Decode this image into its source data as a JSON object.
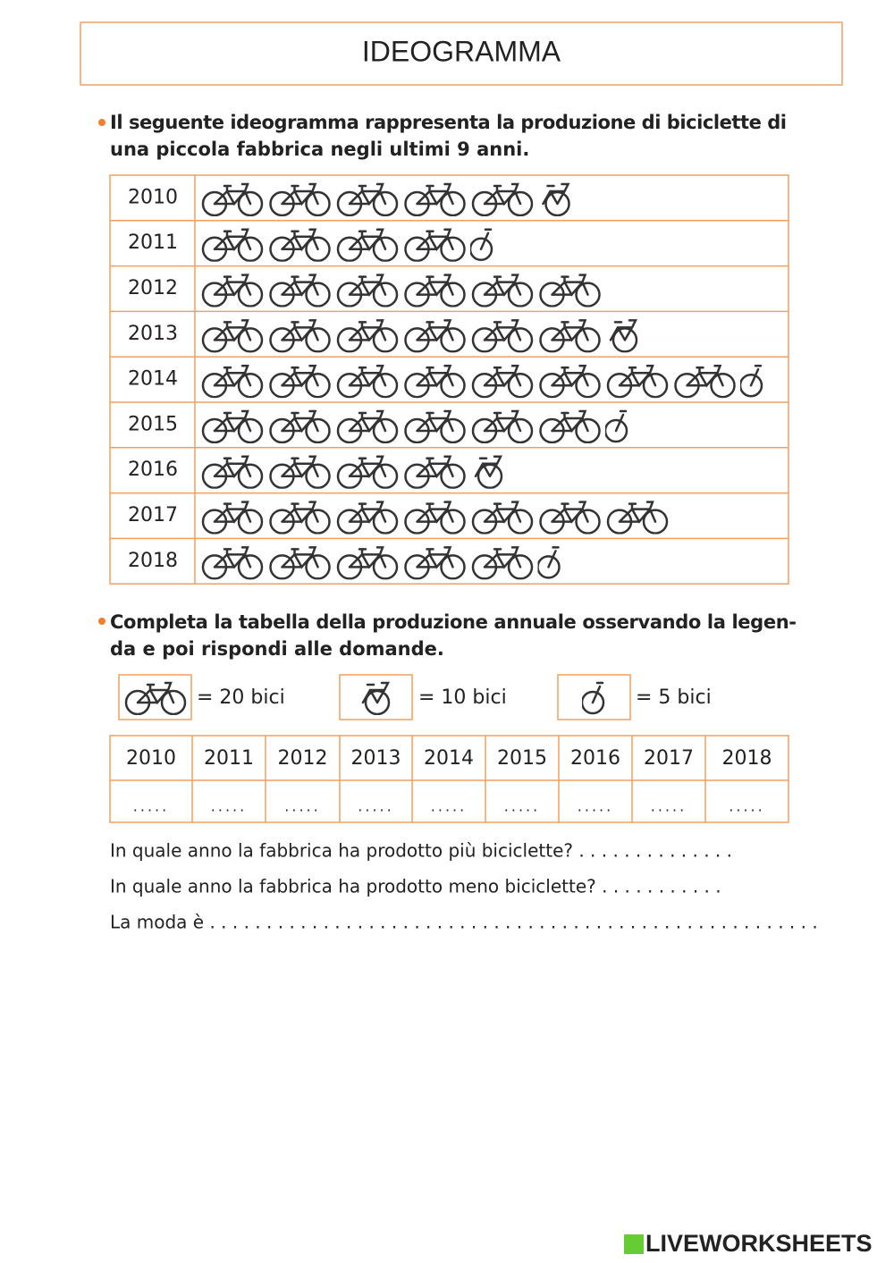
{
  "title": "IDEOGRAMMA",
  "intro": [
    "Il seguente ideogramma rappresenta la produzione di biciclette di",
    "una piccola fabbrica negli ultimi 9 anni."
  ],
  "pictogram": {
    "rows": [
      {
        "year": "2010",
        "full": 5,
        "half": 1,
        "quarter": 0
      },
      {
        "year": "2011",
        "full": 4,
        "half": 0,
        "quarter": 1
      },
      {
        "year": "2012",
        "full": 6,
        "half": 0,
        "quarter": 0
      },
      {
        "year": "2013",
        "full": 6,
        "half": 1,
        "quarter": 0
      },
      {
        "year": "2014",
        "full": 8,
        "half": 0,
        "quarter": 1
      },
      {
        "year": "2015",
        "full": 6,
        "half": 0,
        "quarter": 1
      },
      {
        "year": "2016",
        "full": 4,
        "half": 1,
        "quarter": 0
      },
      {
        "year": "2017",
        "full": 7,
        "half": 0,
        "quarter": 0
      },
      {
        "year": "2018",
        "full": 5,
        "half": 0,
        "quarter": 1
      }
    ]
  },
  "instruction": [
    "Completa la tabella della produzione annuale osservando la legen-",
    "da e poi rispondi alle domande."
  ],
  "legend": {
    "full": "= 20 bici",
    "half": "= 10 bici",
    "quarter": "= 5 bici"
  },
  "answer_table": {
    "header": [
      "2010",
      "2011",
      "2012",
      "2013",
      "2014",
      "2015",
      "2016",
      "2017",
      "2018"
    ],
    "cells": [
      ".....",
      ".....",
      ".....",
      ".....",
      ".....",
      ".....",
      ".....",
      ".....",
      "....."
    ]
  },
  "questions": [
    "In quale anno la fabbrica ha prodotto più biciclette? . . . . . . . . . . . . . .",
    "In quale anno la fabbrica ha prodotto meno biciclette? . . . . . . . . . . .",
    "La moda è  . . . . . . . . . . . . . . . . . . . . . . . . . . . . . . . . . . . . . . . . . . . . . . . . . . . . . ."
  ],
  "brand": "LIVEWORKSHEETS"
}
